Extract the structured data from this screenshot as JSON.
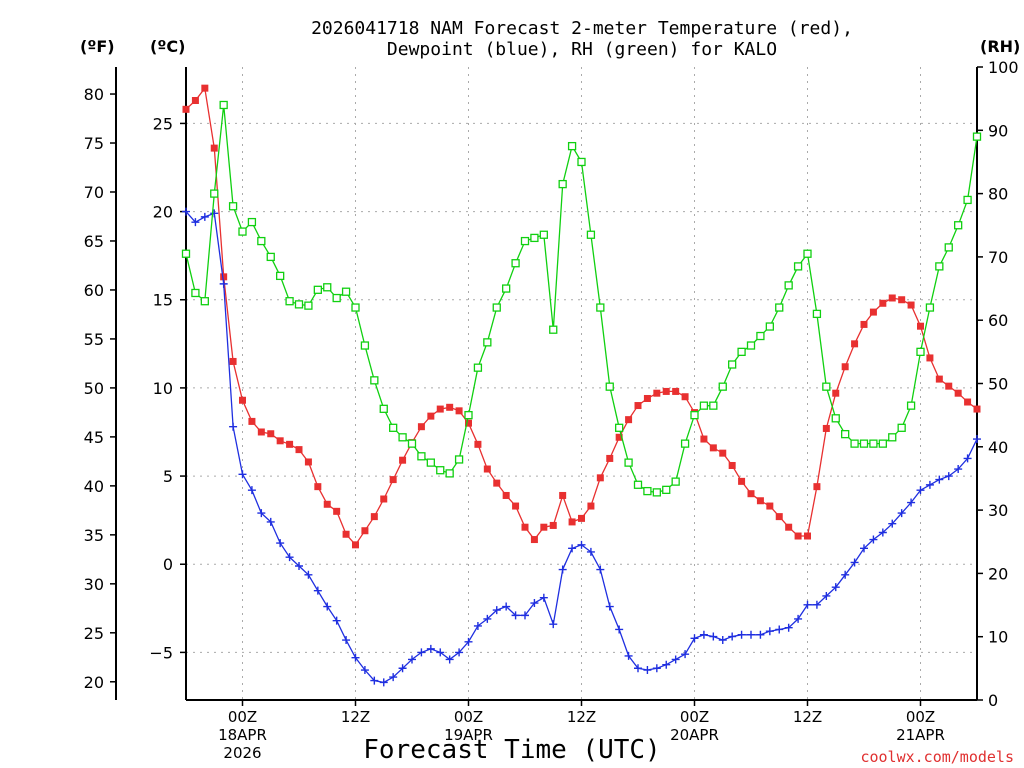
{
  "chart_data": {
    "type": "line",
    "title": "2026041718 NAM Forecast 2-meter Temperature (red),",
    "title_line2": "Dewpoint (blue), RH (green) for KALO",
    "xlabel": "Forecast Time (UTC)",
    "credit": "coolwx.com/models",
    "units": {
      "fahrenheit": "(ºF)",
      "celsius": "(ºC)",
      "rh": "(RH)"
    },
    "x_range": [
      -6,
      78
    ],
    "y_range_c": [
      -7.7,
      28.2
    ],
    "y_range_rh": [
      0,
      100
    ],
    "celsius_ticks": [
      25,
      20,
      15,
      10,
      5,
      0,
      -5
    ],
    "celsius_tick_labels": [
      "25",
      "20",
      "15",
      "10",
      "5",
      "0",
      "−5"
    ],
    "fahrenheit_ticks": [
      80,
      75,
      70,
      65,
      60,
      55,
      50,
      45,
      40,
      35,
      30,
      25,
      20
    ],
    "fahrenheit_tick_labels": [
      "80",
      "75",
      "70",
      "65",
      "60",
      "55",
      "50",
      "45",
      "40",
      "35",
      "30",
      "25",
      "20"
    ],
    "rh_ticks": [
      100,
      90,
      80,
      70,
      60,
      50,
      40,
      30,
      20,
      10,
      0
    ],
    "rh_tick_labels": [
      "100",
      "90",
      "80",
      "70",
      "60",
      "50",
      "40",
      "30",
      "20",
      "10",
      "0"
    ],
    "x_gridlines": [
      0,
      12,
      24,
      36,
      48,
      60,
      72
    ],
    "x_ticks": [
      {
        "hour": 0,
        "lines": [
          "00Z",
          "18APR",
          "2026"
        ]
      },
      {
        "hour": 12,
        "lines": [
          "12Z"
        ]
      },
      {
        "hour": 24,
        "lines": [
          "00Z",
          "19APR"
        ]
      },
      {
        "hour": 36,
        "lines": [
          "12Z"
        ]
      },
      {
        "hour": 48,
        "lines": [
          "00Z",
          "20APR"
        ]
      },
      {
        "hour": 60,
        "lines": [
          "12Z"
        ]
      },
      {
        "hour": 72,
        "lines": [
          "00Z",
          "21APR"
        ]
      }
    ],
    "colors": {
      "temperature": "#e83030",
      "dewpoint": "#1f2fe0",
      "rh": "#10d010"
    },
    "series": [
      {
        "name": "Temperature",
        "unit": "C",
        "x": [
          -6,
          -5,
          -4,
          -3,
          -2,
          -1,
          0,
          1,
          2,
          3,
          4,
          5,
          6,
          7,
          8,
          9,
          10,
          11,
          12,
          13,
          14,
          15,
          16,
          17,
          18,
          19,
          20,
          21,
          22,
          23,
          24,
          25,
          26,
          27,
          28,
          29,
          30,
          31,
          32,
          33,
          34,
          35,
          36,
          37,
          38,
          39,
          40,
          41,
          42,
          43,
          44,
          45,
          46,
          47,
          48,
          49,
          50,
          51,
          52,
          53,
          54,
          55,
          56,
          57,
          58,
          59,
          60,
          61,
          62,
          63,
          64,
          65,
          66,
          67,
          68,
          69,
          70,
          71,
          72,
          73,
          74,
          75,
          76,
          77,
          78
        ],
        "values": [
          25.8,
          26.3,
          27.0,
          23.6,
          16.3,
          11.5,
          9.3,
          8.1,
          7.5,
          7.4,
          7.0,
          6.8,
          6.5,
          5.8,
          4.4,
          3.4,
          3.0,
          1.7,
          1.1,
          1.9,
          2.7,
          3.7,
          4.8,
          5.9,
          6.9,
          7.8,
          8.4,
          8.8,
          8.9,
          8.7,
          8.0,
          6.8,
          5.4,
          4.6,
          3.9,
          3.3,
          2.1,
          1.4,
          2.1,
          2.2,
          3.9,
          2.4,
          2.6,
          3.3,
          4.9,
          6.0,
          7.2,
          8.2,
          9.0,
          9.4,
          9.7,
          9.8,
          9.8,
          9.5,
          8.6,
          7.1,
          6.6,
          6.3,
          5.6,
          4.7,
          4.0,
          3.6,
          3.3,
          2.7,
          2.1,
          1.6,
          1.6,
          4.4,
          7.7,
          9.7,
          11.2,
          12.5,
          13.6,
          14.3,
          14.8,
          15.1,
          15.0,
          14.7,
          13.5,
          11.7,
          10.5,
          10.1,
          9.7,
          9.2,
          8.8
        ]
      },
      {
        "name": "Dewpoint",
        "unit": "C",
        "x": [
          -6,
          -5,
          -4,
          -3,
          -2,
          -1,
          0,
          1,
          2,
          3,
          4,
          5,
          6,
          7,
          8,
          9,
          10,
          11,
          12,
          13,
          14,
          15,
          16,
          17,
          18,
          19,
          20,
          21,
          22,
          23,
          24,
          25,
          26,
          27,
          28,
          29,
          30,
          31,
          32,
          33,
          34,
          35,
          36,
          37,
          38,
          39,
          40,
          41,
          42,
          43,
          44,
          45,
          46,
          47,
          48,
          49,
          50,
          51,
          52,
          53,
          54,
          55,
          56,
          57,
          58,
          59,
          60,
          61,
          62,
          63,
          64,
          65,
          66,
          67,
          68,
          69,
          70,
          71,
          72,
          73,
          74,
          75,
          76,
          77,
          78
        ],
        "values": [
          20.0,
          19.4,
          19.7,
          19.9,
          15.9,
          7.8,
          5.1,
          4.2,
          2.9,
          2.4,
          1.2,
          0.4,
          -0.1,
          -0.6,
          -1.5,
          -2.4,
          -3.2,
          -4.3,
          -5.3,
          -6.0,
          -6.6,
          -6.7,
          -6.4,
          -5.9,
          -5.4,
          -5.0,
          -4.8,
          -5.0,
          -5.4,
          -5.0,
          -4.4,
          -3.5,
          -3.1,
          -2.6,
          -2.4,
          -2.9,
          -2.9,
          -2.2,
          -1.9,
          -3.4,
          -0.3,
          0.9,
          1.1,
          0.7,
          -0.3,
          -2.4,
          -3.7,
          -5.2,
          -5.9,
          -6.0,
          -5.9,
          -5.7,
          -5.4,
          -5.1,
          -4.2,
          -4.0,
          -4.1,
          -4.3,
          -4.1,
          -4.0,
          -4.0,
          -4.0,
          -3.8,
          -3.7,
          -3.6,
          -3.1,
          -2.3,
          -2.3,
          -1.8,
          -1.3,
          -0.6,
          0.1,
          0.9,
          1.4,
          1.8,
          2.3,
          2.9,
          3.5,
          4.2,
          4.5,
          4.8,
          5.0,
          5.4,
          6.0,
          7.1
        ]
      },
      {
        "name": "RH",
        "unit": "%",
        "x": [
          -6,
          -5,
          -4,
          -3,
          -2,
          -1,
          0,
          1,
          2,
          3,
          4,
          5,
          6,
          7,
          8,
          9,
          10,
          11,
          12,
          13,
          14,
          15,
          16,
          17,
          18,
          19,
          20,
          21,
          22,
          23,
          24,
          25,
          26,
          27,
          28,
          29,
          30,
          31,
          32,
          33,
          34,
          35,
          36,
          37,
          38,
          39,
          40,
          41,
          42,
          43,
          44,
          45,
          46,
          47,
          48,
          49,
          50,
          51,
          52,
          53,
          54,
          55,
          56,
          57,
          58,
          59,
          60,
          61,
          62,
          63,
          64,
          65,
          66,
          67,
          68,
          69,
          70,
          71,
          72,
          73,
          74,
          75,
          76,
          77,
          78
        ],
        "values": [
          70.5,
          64.3,
          63.0,
          80.0,
          94.0,
          78.0,
          74.0,
          75.5,
          72.5,
          70.0,
          67.0,
          63.0,
          62.5,
          62.3,
          64.8,
          65.2,
          63.5,
          64.5,
          62.0,
          56.0,
          50.5,
          46.0,
          43.0,
          41.5,
          40.5,
          38.5,
          37.5,
          36.3,
          35.8,
          38.0,
          45.0,
          52.5,
          56.5,
          62.0,
          65.0,
          69.0,
          72.5,
          73.0,
          73.5,
          58.5,
          81.5,
          87.5,
          85.0,
          73.5,
          62.0,
          49.5,
          43.0,
          37.5,
          34.0,
          33.0,
          32.8,
          33.2,
          34.5,
          40.5,
          45.0,
          46.5,
          46.5,
          49.5,
          53.0,
          55.0,
          56.0,
          57.5,
          59.0,
          62.0,
          65.5,
          68.5,
          70.5,
          61.0,
          49.5,
          44.5,
          42.0,
          40.5,
          40.5,
          40.5,
          40.5,
          41.5,
          43.0,
          46.5,
          55.0,
          62.0,
          68.5,
          71.5,
          75.0,
          79.0,
          89.0
        ]
      }
    ]
  }
}
